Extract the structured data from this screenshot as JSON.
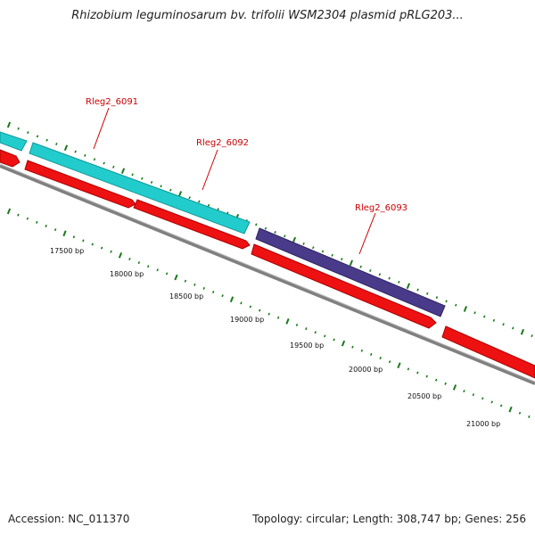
{
  "title": "Rhizobium leguminosarum bv. trifolii WSM2304 plasmid pRLG203...",
  "footer": {
    "accession": "Accession: NC_011370",
    "topology": "Topology: circular; Length: 308,747 bp; Genes: 256"
  },
  "colors": {
    "gene_cyan": "#22cccc",
    "gene_purple": "#4a3a8a",
    "cds_red": "#ee1111",
    "backbone": "#808080",
    "tick_green": "#1a7a1a",
    "label_red": "#cc0000"
  },
  "gene_labels": [
    {
      "id": "gene-label-rleg2-6091",
      "text": "Rleg2_6091"
    },
    {
      "id": "gene-label-rleg2-6092",
      "text": "Rleg2_6092"
    },
    {
      "id": "gene-label-rleg2-6093",
      "text": "Rleg2_6093"
    }
  ],
  "scale_labels": [
    "17500 bp",
    "18000 bp",
    "18500 bp",
    "19000 bp",
    "19500 bp",
    "20000 bp",
    "20500 bp",
    "21000 bp"
  ]
}
